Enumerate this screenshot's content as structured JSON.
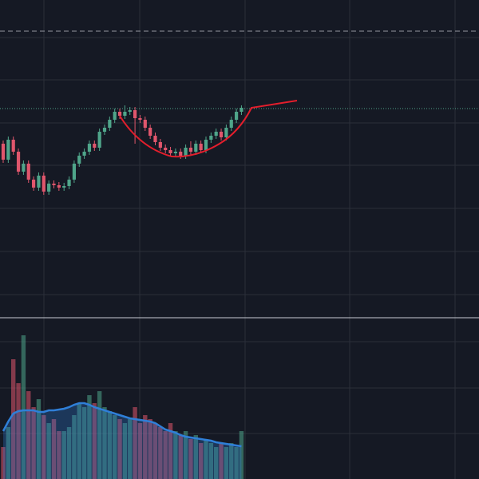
{
  "chart_data": {
    "type": "candlestick",
    "open": [
      55,
      50,
      56.25,
      52.5,
      46.25,
      48.75,
      43.75,
      41.25,
      45,
      40,
      42.5,
      42,
      41.25,
      41.75,
      43.75,
      48.75,
      51.25,
      52.5,
      55,
      53.75,
      58.75,
      60,
      62.5,
      65,
      63.75,
      65,
      65.5,
      63,
      62.5,
      60,
      57.5,
      55.5,
      53.75,
      53,
      52,
      52.5,
      51.25,
      53.75,
      52.5,
      55,
      53,
      56.25,
      57.5,
      58.75,
      57,
      60,
      62.5,
      65
    ],
    "high": [
      56,
      57.25,
      57.25,
      53.5,
      49.75,
      49.75,
      44.75,
      46,
      46,
      43.5,
      43.5,
      43,
      42.75,
      44.75,
      49.75,
      52.25,
      53.5,
      56,
      56,
      59.75,
      61,
      63.5,
      66,
      66,
      67,
      66.5,
      66.5,
      64,
      63.5,
      61,
      58.5,
      56.5,
      54.75,
      54,
      53.5,
      53.5,
      54.75,
      55.75,
      56,
      56,
      57.25,
      58.5,
      59.75,
      59.75,
      61,
      63.5,
      66,
      67
    ],
    "low": [
      49,
      49,
      51.5,
      45.25,
      45.25,
      42.75,
      40.25,
      40.25,
      39,
      39,
      41,
      40.25,
      40.25,
      40.75,
      42.75,
      47.75,
      50.25,
      51.5,
      52.75,
      52.75,
      57.75,
      59,
      61.5,
      62.75,
      62.75,
      64,
      55,
      61.5,
      59,
      56.5,
      54.5,
      52.75,
      52,
      51,
      51,
      50.25,
      50.25,
      51.5,
      51.5,
      52,
      52,
      55.25,
      56.5,
      56,
      56,
      59,
      61.5,
      64
    ],
    "close": [
      50,
      56.25,
      52.5,
      46.25,
      48.75,
      43.75,
      41.25,
      45,
      40,
      42.5,
      42,
      41.25,
      41.75,
      43.75,
      48.75,
      51.25,
      52.5,
      55,
      53.75,
      58.75,
      60,
      62.5,
      65,
      63.75,
      65,
      65.5,
      63,
      62.5,
      60,
      57.5,
      55.5,
      53.75,
      53,
      52,
      52.5,
      51.25,
      53.75,
      52.5,
      55,
      53,
      56.25,
      57.5,
      58.75,
      57,
      60,
      62.5,
      65,
      66.25
    ],
    "volume": [
      40,
      65,
      150,
      120,
      180,
      110,
      90,
      100,
      80,
      70,
      75,
      60,
      60,
      65,
      80,
      95,
      90,
      105,
      95,
      110,
      90,
      85,
      80,
      75,
      70,
      75,
      90,
      70,
      80,
      75,
      70,
      65,
      60,
      70,
      60,
      55,
      60,
      50,
      55,
      45,
      50,
      45,
      40,
      45,
      40,
      45,
      40,
      60
    ],
    "volume_ma": [
      60,
      72,
      82,
      85,
      86,
      86,
      86,
      84,
      84,
      86,
      86,
      87,
      88,
      90,
      93,
      95,
      95,
      93,
      90,
      88,
      86,
      84,
      82,
      80,
      78,
      76,
      75,
      74,
      73,
      72,
      70,
      66,
      62,
      60,
      58,
      55,
      53,
      52,
      51,
      50,
      49,
      48,
      46,
      45,
      44,
      43,
      42,
      41
    ],
    "ylim": [
      0,
      100
    ],
    "volume_ylim": [
      0,
      200
    ],
    "up_color": "#4fa58a",
    "down_color": "#e0566c",
    "ma_color": "#2f7fd8"
  }
}
